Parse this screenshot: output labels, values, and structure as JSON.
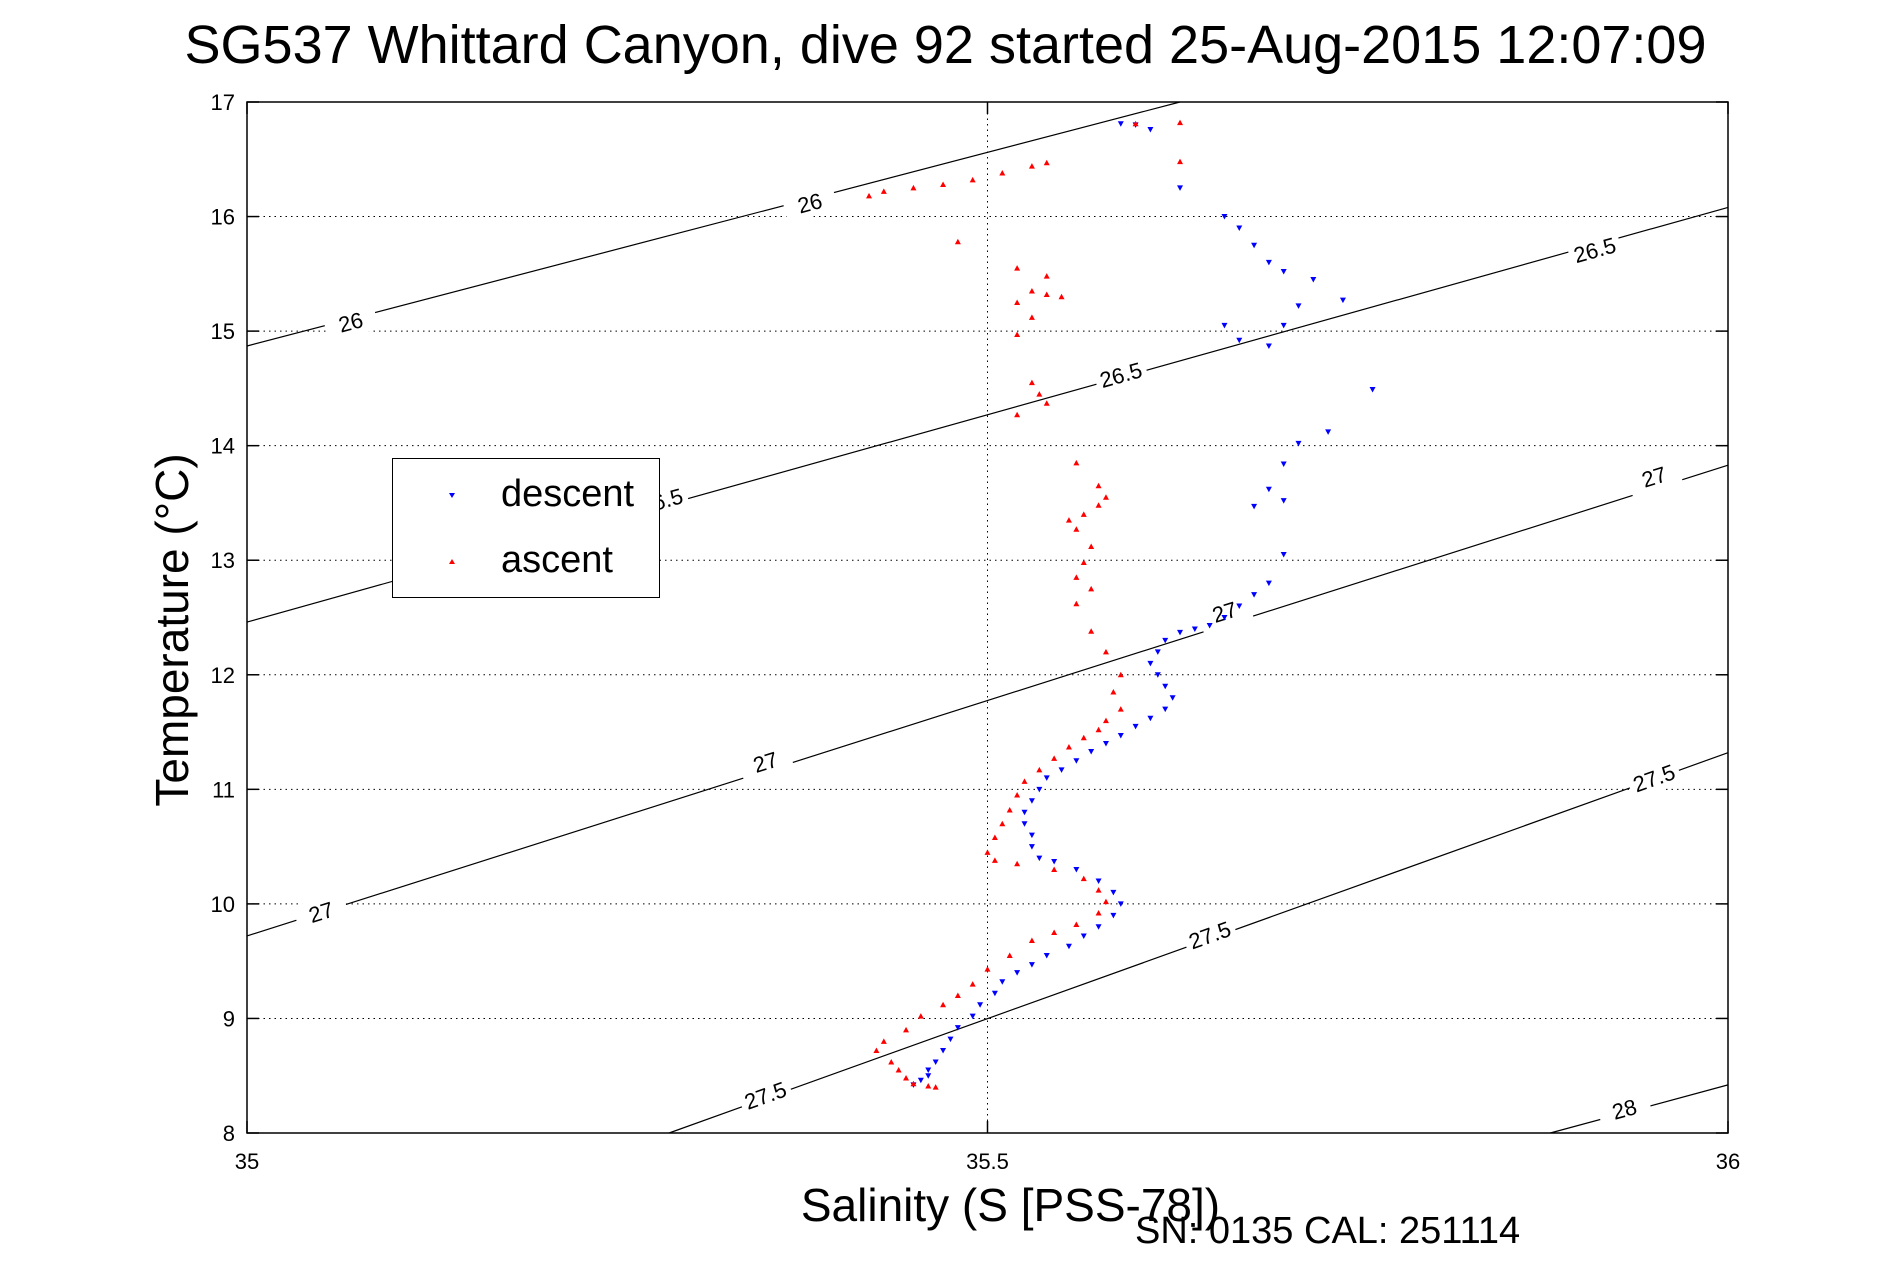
{
  "title": "SG537 Whittard Canyon, dive 92 started 25-Aug-2015 12:07:09",
  "footer": "SN: 0135  CAL: 251114",
  "chart_data": {
    "type": "scatter",
    "title": "SG537 Whittard Canyon, dive 92 started 25-Aug-2015 12:07:09",
    "xlabel": "Salinity (S [PSS-78])",
    "ylabel": "Temperature (°C)",
    "xlim": [
      35,
      36
    ],
    "ylim": [
      8,
      17
    ],
    "xticks": [
      35,
      35.5,
      36
    ],
    "xtick_labels": [
      "35",
      "35.5",
      "36"
    ],
    "yticks": [
      8,
      9,
      10,
      11,
      12,
      13,
      14,
      15,
      16,
      17
    ],
    "ytick_labels": [
      "8",
      "9",
      "10",
      "11",
      "12",
      "13",
      "14",
      "15",
      "16",
      "17"
    ],
    "grid": true,
    "grid_lines": "dotted",
    "legend_placement": "middle-left",
    "colors": {
      "descent": "#0000ff",
      "ascent": "#ff0000",
      "contour": "#000000"
    },
    "series": [
      {
        "name": "descent",
        "marker": "triangle-down",
        "color": "#0000ff",
        "points": [
          [
            35.59,
            16.81
          ],
          [
            35.6,
            16.8
          ],
          [
            35.61,
            16.76
          ],
          [
            35.63,
            16.25
          ],
          [
            35.66,
            16.0
          ],
          [
            35.67,
            15.9
          ],
          [
            35.68,
            15.75
          ],
          [
            35.69,
            15.6
          ],
          [
            35.7,
            15.52
          ],
          [
            35.72,
            15.45
          ],
          [
            35.71,
            15.22
          ],
          [
            35.7,
            15.05
          ],
          [
            35.66,
            15.05
          ],
          [
            35.67,
            14.92
          ],
          [
            35.69,
            14.87
          ],
          [
            35.74,
            15.27
          ],
          [
            35.76,
            14.49
          ],
          [
            35.73,
            14.12
          ],
          [
            35.71,
            14.02
          ],
          [
            35.7,
            13.84
          ],
          [
            35.69,
            13.62
          ],
          [
            35.68,
            13.47
          ],
          [
            35.7,
            13.52
          ],
          [
            35.7,
            13.05
          ],
          [
            35.69,
            12.8
          ],
          [
            35.68,
            12.7
          ],
          [
            35.67,
            12.6
          ],
          [
            35.66,
            12.5
          ],
          [
            35.65,
            12.43
          ],
          [
            35.64,
            12.4
          ],
          [
            35.63,
            12.37
          ],
          [
            35.62,
            12.3
          ],
          [
            35.615,
            12.2
          ],
          [
            35.61,
            12.1
          ],
          [
            35.615,
            12.0
          ],
          [
            35.62,
            11.9
          ],
          [
            35.625,
            11.8
          ],
          [
            35.62,
            11.7
          ],
          [
            35.61,
            11.62
          ],
          [
            35.6,
            11.55
          ],
          [
            35.59,
            11.47
          ],
          [
            35.58,
            11.4
          ],
          [
            35.57,
            11.33
          ],
          [
            35.56,
            11.25
          ],
          [
            35.55,
            11.17
          ],
          [
            35.54,
            11.1
          ],
          [
            35.535,
            11.0
          ],
          [
            35.53,
            10.9
          ],
          [
            35.525,
            10.8
          ],
          [
            35.525,
            10.7
          ],
          [
            35.53,
            10.6
          ],
          [
            35.53,
            10.5
          ],
          [
            35.535,
            10.4
          ],
          [
            35.545,
            10.37
          ],
          [
            35.56,
            10.3
          ],
          [
            35.575,
            10.2
          ],
          [
            35.585,
            10.1
          ],
          [
            35.59,
            10.0
          ],
          [
            35.585,
            9.9
          ],
          [
            35.575,
            9.8
          ],
          [
            35.565,
            9.72
          ],
          [
            35.555,
            9.63
          ],
          [
            35.54,
            9.55
          ],
          [
            35.53,
            9.47
          ],
          [
            35.52,
            9.4
          ],
          [
            35.51,
            9.32
          ],
          [
            35.505,
            9.22
          ],
          [
            35.495,
            9.12
          ],
          [
            35.49,
            9.02
          ],
          [
            35.48,
            8.92
          ],
          [
            35.475,
            8.82
          ],
          [
            35.47,
            8.72
          ],
          [
            35.465,
            8.62
          ],
          [
            35.46,
            8.55
          ],
          [
            35.46,
            8.5
          ],
          [
            35.455,
            8.46
          ],
          [
            35.45,
            8.42
          ]
        ]
      },
      {
        "name": "ascent",
        "marker": "triangle-up",
        "color": "#ff0000",
        "points": [
          [
            35.63,
            16.82
          ],
          [
            35.6,
            16.81
          ],
          [
            35.63,
            16.48
          ],
          [
            35.54,
            16.47
          ],
          [
            35.53,
            16.44
          ],
          [
            35.51,
            16.38
          ],
          [
            35.49,
            16.32
          ],
          [
            35.47,
            16.28
          ],
          [
            35.45,
            16.25
          ],
          [
            35.43,
            16.22
          ],
          [
            35.42,
            16.18
          ],
          [
            35.48,
            15.78
          ],
          [
            35.52,
            15.55
          ],
          [
            35.54,
            15.48
          ],
          [
            35.53,
            15.35
          ],
          [
            35.54,
            15.32
          ],
          [
            35.55,
            15.3
          ],
          [
            35.52,
            15.25
          ],
          [
            35.53,
            15.12
          ],
          [
            35.52,
            14.97
          ],
          [
            35.53,
            14.55
          ],
          [
            35.535,
            14.45
          ],
          [
            35.54,
            14.37
          ],
          [
            35.52,
            14.27
          ],
          [
            35.56,
            13.85
          ],
          [
            35.575,
            13.65
          ],
          [
            35.58,
            13.55
          ],
          [
            35.575,
            13.48
          ],
          [
            35.565,
            13.4
          ],
          [
            35.555,
            13.35
          ],
          [
            35.56,
            13.27
          ],
          [
            35.57,
            13.12
          ],
          [
            35.565,
            12.98
          ],
          [
            35.56,
            12.85
          ],
          [
            35.57,
            12.75
          ],
          [
            35.56,
            12.62
          ],
          [
            35.57,
            12.38
          ],
          [
            35.58,
            12.2
          ],
          [
            35.59,
            12.0
          ],
          [
            35.585,
            11.85
          ],
          [
            35.59,
            11.7
          ],
          [
            35.58,
            11.6
          ],
          [
            35.575,
            11.52
          ],
          [
            35.565,
            11.45
          ],
          [
            35.555,
            11.37
          ],
          [
            35.545,
            11.27
          ],
          [
            35.535,
            11.17
          ],
          [
            35.525,
            11.07
          ],
          [
            35.52,
            10.95
          ],
          [
            35.515,
            10.82
          ],
          [
            35.51,
            10.7
          ],
          [
            35.505,
            10.58
          ],
          [
            35.5,
            10.45
          ],
          [
            35.505,
            10.38
          ],
          [
            35.52,
            10.35
          ],
          [
            35.545,
            10.3
          ],
          [
            35.565,
            10.22
          ],
          [
            35.575,
            10.12
          ],
          [
            35.58,
            10.02
          ],
          [
            35.575,
            9.92
          ],
          [
            35.56,
            9.82
          ],
          [
            35.545,
            9.75
          ],
          [
            35.53,
            9.68
          ],
          [
            35.515,
            9.55
          ],
          [
            35.5,
            9.43
          ],
          [
            35.49,
            9.3
          ],
          [
            35.48,
            9.2
          ],
          [
            35.47,
            9.12
          ],
          [
            35.455,
            9.02
          ],
          [
            35.445,
            8.9
          ],
          [
            35.43,
            8.8
          ],
          [
            35.425,
            8.72
          ],
          [
            35.435,
            8.62
          ],
          [
            35.44,
            8.55
          ],
          [
            35.445,
            8.48
          ],
          [
            35.45,
            8.43
          ],
          [
            35.46,
            8.41
          ],
          [
            35.465,
            8.4
          ]
        ]
      }
    ],
    "density_contours": [
      {
        "level": "26",
        "segments": [
          {
            "from": [
              35.0,
              14.87
            ],
            "to": [
              35.63,
              17.0
            ]
          }
        ],
        "labels": [
          [
            35.07,
            15.08
          ],
          [
            35.38,
            16.12
          ]
        ]
      },
      {
        "level": "26.5",
        "segments": [
          {
            "from": [
              35.0,
              12.46
            ],
            "to": [
              36.0,
              16.08
            ]
          }
        ],
        "labels": [
          [
            35.28,
            13.52
          ],
          [
            35.59,
            14.62
          ],
          [
            35.91,
            15.71
          ]
        ]
      },
      {
        "level": "27",
        "segments": [
          {
            "from": [
              35.0,
              9.72
            ],
            "to": [
              36.0,
              13.83
            ]
          }
        ],
        "labels": [
          [
            35.05,
            9.93
          ],
          [
            35.35,
            11.24
          ],
          [
            35.66,
            12.55
          ],
          [
            35.95,
            13.73
          ]
        ]
      },
      {
        "level": "27.5",
        "segments": [
          {
            "from": [
              35.285,
              8.0
            ],
            "to": [
              36.0,
              11.32
            ]
          }
        ],
        "labels": [
          [
            35.35,
            8.33
          ],
          [
            35.65,
            9.73
          ],
          [
            35.95,
            11.1
          ]
        ]
      },
      {
        "level": "28",
        "segments": [
          {
            "from": [
              35.88,
              8.0
            ],
            "to": [
              36.0,
              8.42
            ]
          }
        ],
        "labels": [
          [
            35.93,
            8.21
          ]
        ]
      }
    ]
  }
}
